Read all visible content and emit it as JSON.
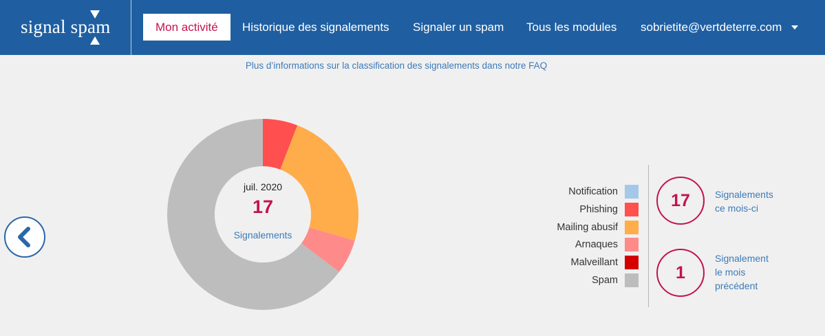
{
  "header": {
    "logo_text": "signal spam",
    "nav": [
      {
        "label": "Mon activité",
        "active": true
      },
      {
        "label": "Historique des signalements",
        "active": false
      },
      {
        "label": "Signaler un spam",
        "active": false
      },
      {
        "label": "Tous les modules",
        "active": false
      },
      {
        "label": "sobrietite@vertdeterre.com",
        "active": false
      }
    ]
  },
  "faq_link": "Plus d’informations sur la classification des signalements dans notre FAQ",
  "chart_data": {
    "type": "pie",
    "donut": true,
    "center": {
      "date": "juil. 2020",
      "value": "17",
      "label": "Signalements"
    },
    "categories": [
      "Notification",
      "Phishing",
      "Mailing abusif",
      "Arnaques",
      "Malveillant",
      "Spam"
    ],
    "values": [
      0,
      1,
      4,
      1,
      0,
      11
    ],
    "colors": [
      "#a4c8e8",
      "#ff4f4f",
      "#ffad4a",
      "#ff8a8a",
      "#d40000",
      "#bdbdbd"
    ],
    "legend_placement": "right"
  },
  "stats": [
    {
      "value": "17",
      "label_lines": [
        "Signalements",
        "ce mois-ci"
      ]
    },
    {
      "value": "1",
      "label_lines": [
        "Signalement",
        "le mois",
        "précédent"
      ]
    }
  ]
}
